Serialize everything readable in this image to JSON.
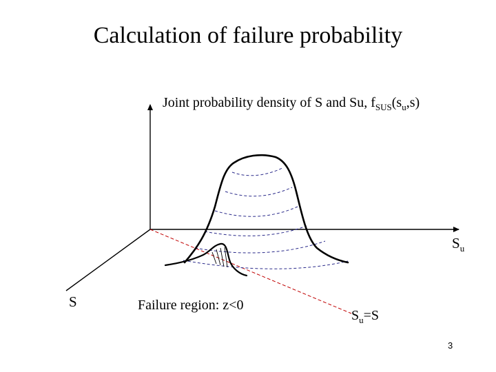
{
  "title": "Calculation of failure probability",
  "labels": {
    "vertical_axis_text": "Joint probability density of S and Su, f",
    "vertical_axis_sub": "SUS",
    "vertical_axis_args": "(s",
    "vertical_axis_args_sub": "u",
    "vertical_axis_args_end": ",s)",
    "su_axis": "S",
    "su_axis_sub": "u",
    "s_axis": "S",
    "failure_region": "Failure region: z<0",
    "diagonal_main": "S",
    "diagonal_sub": "u",
    "diagonal_end": "=S"
  },
  "page_number": "3",
  "colors": {
    "axis": "#000000",
    "curve": "#000000",
    "diagonal": "#c00000",
    "contour": "#2a2a8a"
  }
}
